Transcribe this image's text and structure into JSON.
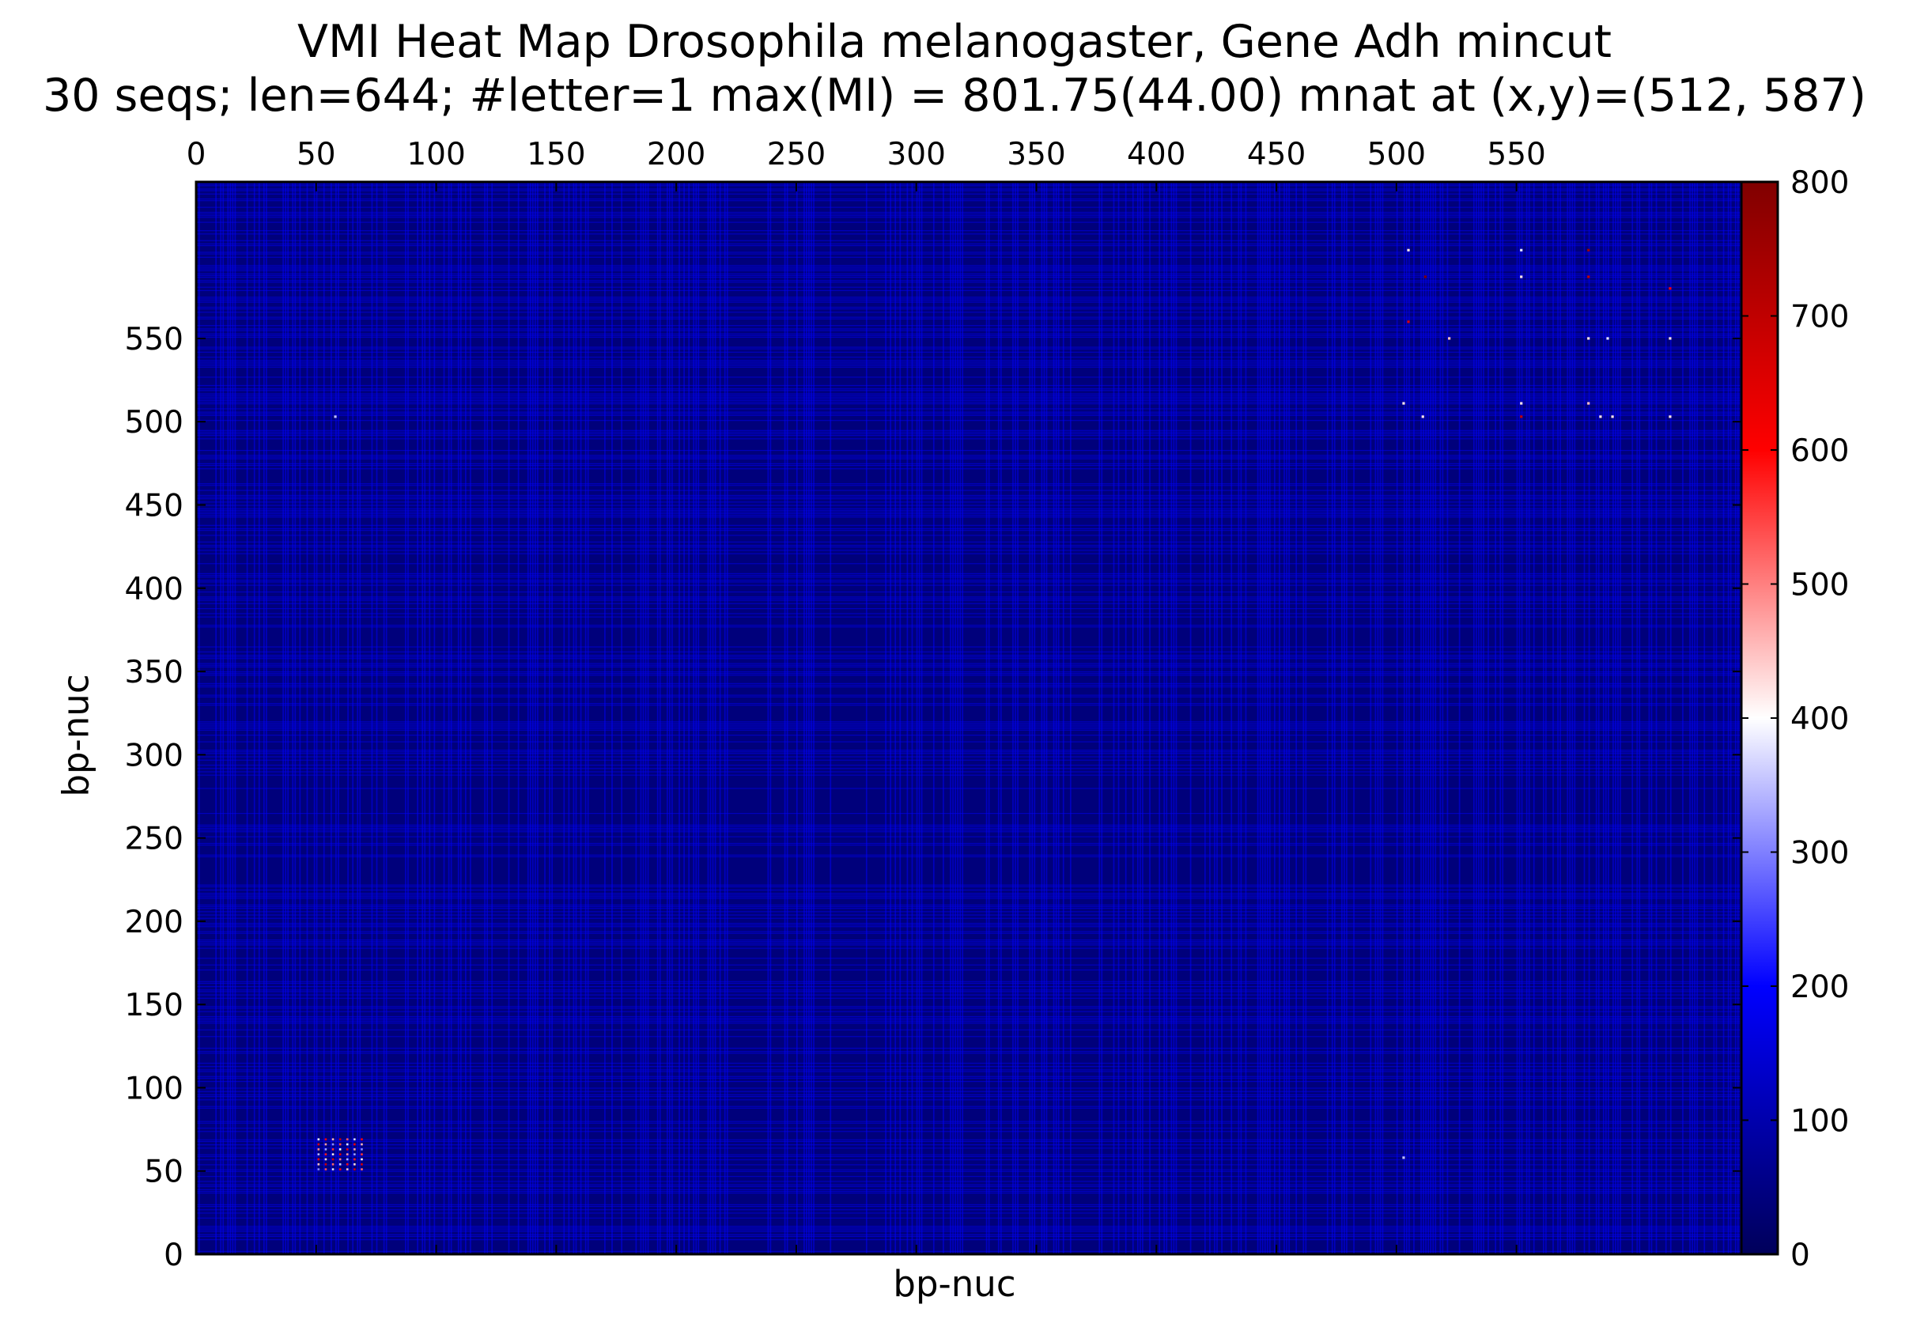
{
  "chart_data": {
    "type": "heatmap",
    "title": "VMI Heat Map Drosophila melanogaster, Gene Adh mincut",
    "subtitle": "30 seqs; len=644; #letter=1 max(MI) = 801.75(44.00) mnat at (x,y)=(512, 587)",
    "xlabel": "bp-nuc",
    "ylabel": "bp-nuc",
    "xlim": [
      0,
      644
    ],
    "ylim": [
      0,
      644
    ],
    "x_ticks": [
      0,
      50,
      100,
      150,
      200,
      250,
      300,
      350,
      400,
      450,
      500,
      550
    ],
    "y_ticks": [
      0,
      50,
      100,
      150,
      200,
      250,
      300,
      350,
      400,
      450,
      500,
      550
    ],
    "x_axis_position": "top",
    "colorbar": {
      "min": 0,
      "max": 800,
      "ticks": [
        0,
        100,
        200,
        300,
        400,
        500,
        600,
        700,
        800
      ],
      "colormap": [
        "#00005a",
        "#0000ff",
        "#ffffff",
        "#ff0000",
        "#800000"
      ]
    },
    "background_value": 40,
    "variable_position_value": 190,
    "max_point": {
      "x": 512,
      "y": 587,
      "value": 801.75
    },
    "hotspots": [
      {
        "x": 512,
        "y": 587,
        "value": 801.75
      },
      {
        "x": 505,
        "y": 603,
        "value": 420
      },
      {
        "x": 505,
        "y": 560,
        "value": 650
      },
      {
        "x": 522,
        "y": 550,
        "value": 450
      },
      {
        "x": 511,
        "y": 503,
        "value": 420
      },
      {
        "x": 503,
        "y": 511,
        "value": 420
      },
      {
        "x": 552,
        "y": 511,
        "value": 420
      },
      {
        "x": 552,
        "y": 587,
        "value": 420
      },
      {
        "x": 552,
        "y": 603,
        "value": 380
      },
      {
        "x": 552,
        "y": 503,
        "value": 700
      },
      {
        "x": 580,
        "y": 603,
        "value": 750
      },
      {
        "x": 580,
        "y": 587,
        "value": 700
      },
      {
        "x": 580,
        "y": 550,
        "value": 420
      },
      {
        "x": 580,
        "y": 511,
        "value": 450
      },
      {
        "x": 585,
        "y": 503,
        "value": 420
      },
      {
        "x": 590,
        "y": 503,
        "value": 420
      },
      {
        "x": 588,
        "y": 550,
        "value": 380
      },
      {
        "x": 614,
        "y": 503,
        "value": 420
      },
      {
        "x": 614,
        "y": 580,
        "value": 600
      },
      {
        "x": 614,
        "y": 550,
        "value": 420
      },
      {
        "x": 503,
        "y": 58,
        "value": 350
      },
      {
        "x": 58,
        "y": 503,
        "value": 350
      }
    ],
    "cluster_region": {
      "x": [
        51,
        70
      ],
      "y": [
        51,
        70
      ],
      "value_range": [
        300,
        700
      ]
    }
  }
}
